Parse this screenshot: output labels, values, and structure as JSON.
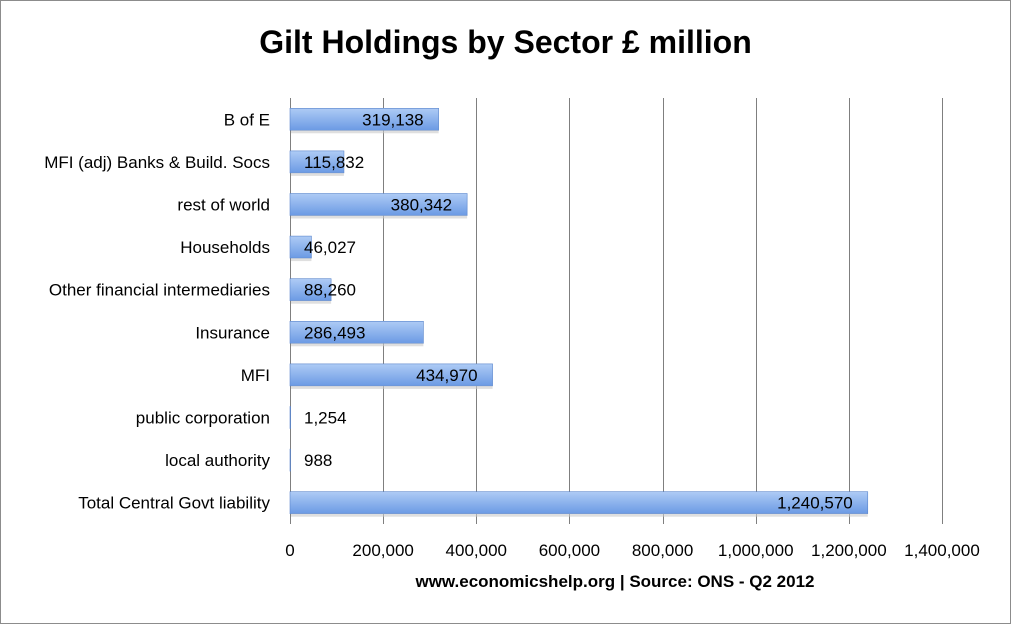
{
  "chart_data": {
    "type": "bar",
    "orientation": "horizontal",
    "title": "Gilt Holdings by Sector £ million",
    "xlabel": "www.economicshelp.org | Source: ONS - Q2 2012",
    "ylabel": "",
    "categories": [
      "B of E",
      "MFI (adj) Banks & Build. Socs",
      "rest of world",
      "Households",
      "Other financial intermediaries",
      "Insurance",
      "MFI",
      "public corporation",
      "local authority",
      "Total Central Govt liability"
    ],
    "values": [
      319138,
      115832,
      380342,
      46027,
      88260,
      286493,
      434970,
      1254,
      988,
      1240570
    ],
    "value_labels": [
      "319,138",
      "115,832",
      "380,342",
      "46,027",
      "88,260",
      "286,493",
      "434,970",
      "1,254",
      "988",
      "1,240,570"
    ],
    "xlim": [
      0,
      1400000
    ],
    "x_ticks": [
      0,
      200000,
      400000,
      600000,
      800000,
      1000000,
      1200000,
      1400000
    ],
    "x_tick_labels": [
      "0",
      "200,000",
      "400,000",
      "600,000",
      "800,000",
      "1,000,000",
      "1,200,000",
      "1,400,000"
    ],
    "grid": "vertical",
    "legend": "none",
    "colors": {
      "bar": "#6b9ae4",
      "bar_light": "#aecbf5",
      "grid": "#7f7f7f"
    }
  }
}
